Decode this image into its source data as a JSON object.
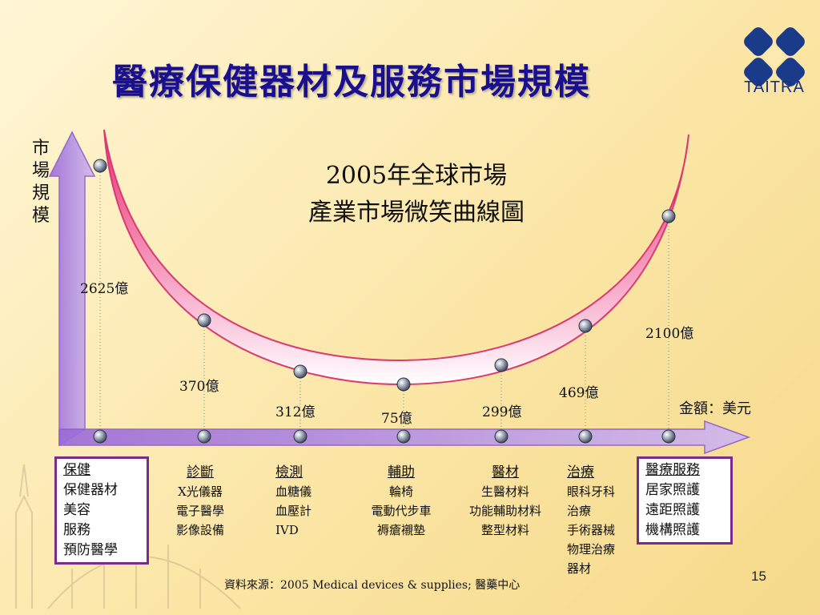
{
  "title": "醫療保健器材及服務市場規模",
  "subtitle": [
    "2005年全球市場",
    "產業市場微笑曲線圖"
  ],
  "y_axis_label": [
    "市",
    "場",
    "規",
    "模"
  ],
  "unit_label": "金額：美元",
  "logo": {
    "text": "TAITRA",
    "color": "#1a3a8a"
  },
  "values": [
    {
      "label": "2625億",
      "amount": 2625
    },
    {
      "label": "370億",
      "amount": 370
    },
    {
      "label": "312億",
      "amount": 312
    },
    {
      "label": "75億",
      "amount": 75
    },
    {
      "label": "299億",
      "amount": 299
    },
    {
      "label": "469億",
      "amount": 469
    },
    {
      "label": "2100億",
      "amount": 2100
    }
  ],
  "left_box": {
    "head": "保健",
    "items": [
      "保健器材",
      "美容",
      "服務",
      "預防醫學"
    ]
  },
  "categories": [
    {
      "head": "診斷",
      "items": [
        "X光儀器",
        "電子醫學",
        "影像設備"
      ]
    },
    {
      "head": "檢測",
      "items": [
        "血糖儀",
        "血壓計",
        "IVD"
      ]
    },
    {
      "head": "輔助",
      "items": [
        "輪椅",
        "電動代步車",
        "褥瘡襯墊"
      ]
    },
    {
      "head": "醫材",
      "items": [
        "生醫材料",
        "功能輔助材料",
        "整型材料"
      ]
    },
    {
      "head": "治療",
      "items": [
        "眼科牙科",
        "治療",
        "手術器械",
        "物理治療",
        "器材"
      ]
    }
  ],
  "right_box": {
    "head": "醫療服務",
    "items": [
      "居家照護",
      "遠距照護",
      "機構照護"
    ]
  },
  "source": "資料來源：2005 Medical devices & supplies; 醫藥中心",
  "page_number": "15",
  "colors": {
    "title": "#1a0f8f",
    "axis": "#b58be6",
    "curve": "#e0336f",
    "box_border": "#7a2a8a"
  }
}
